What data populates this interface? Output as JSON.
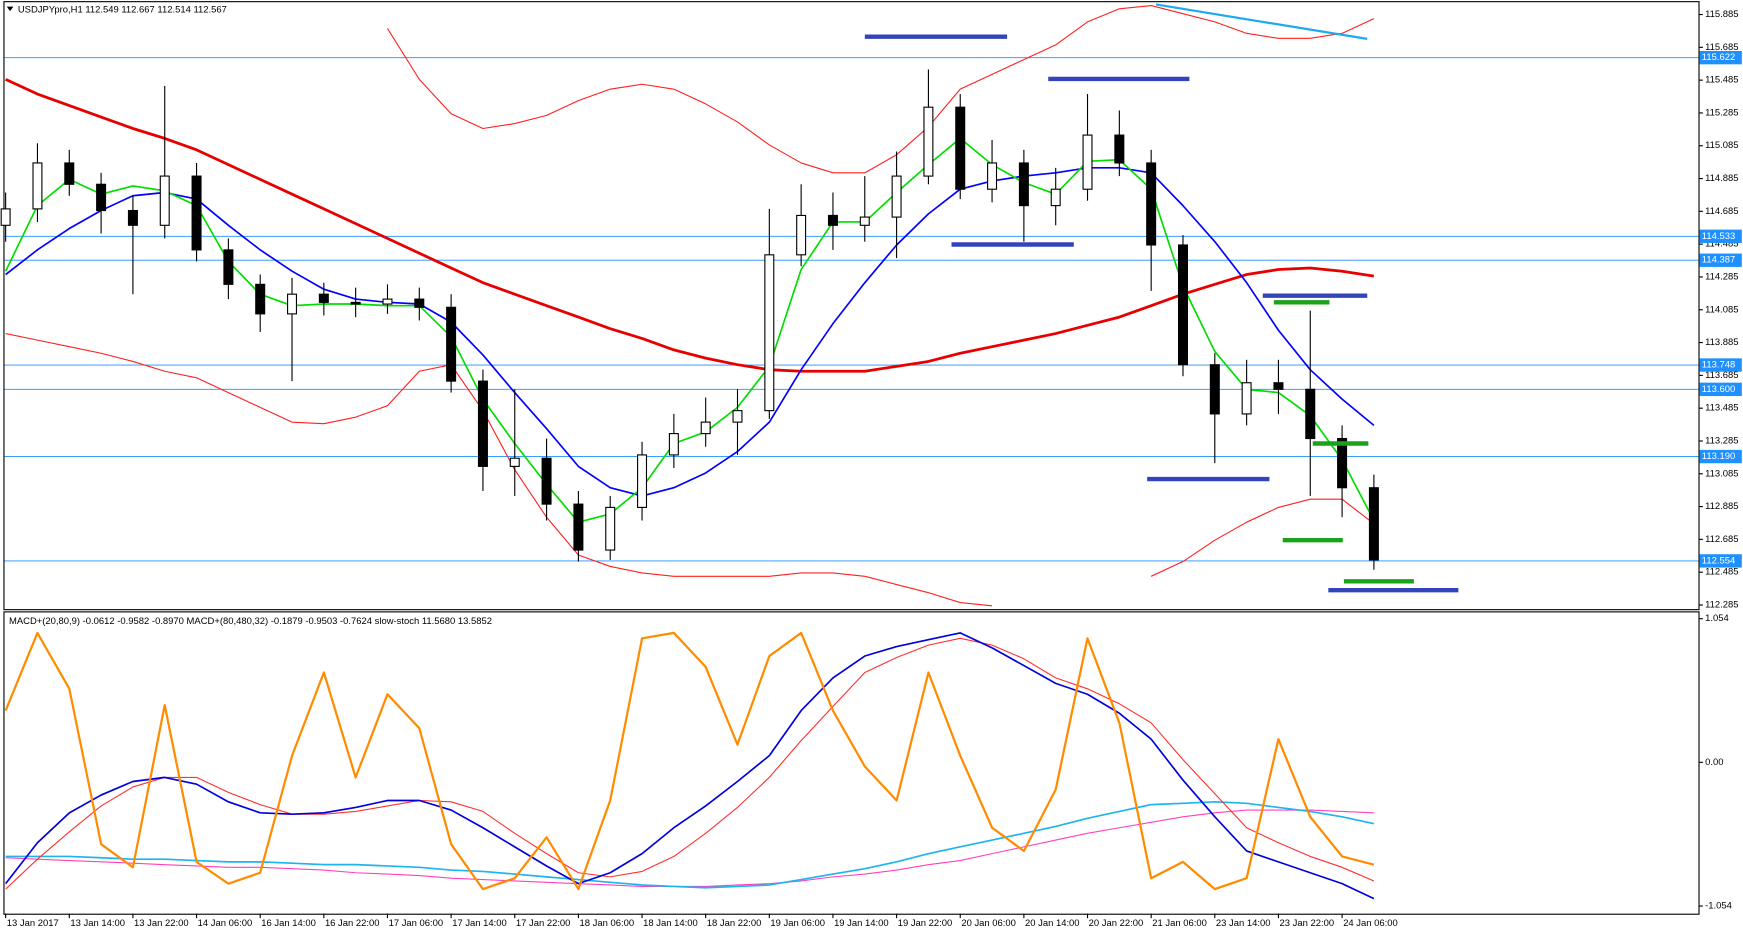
{
  "header": {
    "text": "USDJPYpro,H1  112.549 112.667 112.514 112.567"
  },
  "chart_data": [
    {
      "type": "candlestick",
      "categories": [
        "13 Jan 2017",
        null,
        "13 Jan 14:00",
        null,
        "13 Jan 22:00",
        null,
        "14 Jan 06:00",
        null,
        "16 Jan 14:00",
        null,
        "16 Jan 22:00",
        null,
        "17 Jan 06:00",
        null,
        "17 Jan 14:00",
        null,
        "17 Jan 22:00",
        null,
        "18 Jan 06:00",
        null,
        "18 Jan 14:00",
        null,
        "18 Jan 22:00",
        null,
        "19 Jan 06:00",
        null,
        "19 Jan 14:00",
        null,
        "19 Jan 22:00",
        null,
        "20 Jan 06:00",
        null,
        "20 Jan 14:00",
        null,
        "20 Jan 22:00",
        null,
        "21 Jan 06:00",
        null,
        "23 Jan 14:00",
        null,
        "23 Jan 22:00",
        null,
        "24 Jan 06:00",
        null
      ],
      "open": [
        114.6,
        114.7,
        114.98,
        114.85,
        114.69,
        114.6,
        114.9,
        114.45,
        114.24,
        114.06,
        114.18,
        114.13,
        114.12,
        114.15,
        114.1,
        113.65,
        113.13,
        113.18,
        112.9,
        112.62,
        112.88,
        113.2,
        113.33,
        113.4,
        113.47,
        114.42,
        114.66,
        114.6,
        114.65,
        114.9,
        115.32,
        114.82,
        114.98,
        114.72,
        114.82,
        115.15,
        114.98,
        114.48,
        113.75,
        113.45,
        113.64,
        113.6,
        113.3,
        113.0
      ],
      "high": [
        114.8,
        115.1,
        115.06,
        114.92,
        114.78,
        115.45,
        114.98,
        114.52,
        114.3,
        114.28,
        114.25,
        114.22,
        114.24,
        114.22,
        114.18,
        113.72,
        113.6,
        113.3,
        112.98,
        112.95,
        113.28,
        113.45,
        113.55,
        113.6,
        114.7,
        114.85,
        114.8,
        114.9,
        115.05,
        115.55,
        115.4,
        115.12,
        115.06,
        114.95,
        115.4,
        115.3,
        115.06,
        114.54,
        113.82,
        113.78,
        113.78,
        114.08,
        113.38,
        113.08
      ],
      "low": [
        114.5,
        114.62,
        114.78,
        114.55,
        114.18,
        114.52,
        114.38,
        114.15,
        113.95,
        113.65,
        114.05,
        114.04,
        114.06,
        114.02,
        113.58,
        112.98,
        112.95,
        112.8,
        112.55,
        112.56,
        112.8,
        113.12,
        113.25,
        113.2,
        113.42,
        114.35,
        114.45,
        114.5,
        114.4,
        114.85,
        114.76,
        114.74,
        114.5,
        114.6,
        114.75,
        114.9,
        114.2,
        113.68,
        113.15,
        113.38,
        113.45,
        112.95,
        112.82,
        112.5
      ],
      "close": [
        114.7,
        114.98,
        114.85,
        114.69,
        114.6,
        114.9,
        114.45,
        114.24,
        114.06,
        114.18,
        114.13,
        114.12,
        114.15,
        114.1,
        113.65,
        113.13,
        113.18,
        112.9,
        112.62,
        112.88,
        113.2,
        113.33,
        113.4,
        113.47,
        114.42,
        114.66,
        114.6,
        114.65,
        114.9,
        115.32,
        114.82,
        114.98,
        114.72,
        114.82,
        115.15,
        114.98,
        114.48,
        113.75,
        113.45,
        113.64,
        113.6,
        113.3,
        113.0,
        112.56
      ],
      "up_color": "#ffffff",
      "down_color": "#000000",
      "ylim": [
        112.26,
        115.96
      ],
      "yticks": [
        112.285,
        112.485,
        112.685,
        112.885,
        113.085,
        113.285,
        113.485,
        113.685,
        113.885,
        114.085,
        114.285,
        114.485,
        114.685,
        114.885,
        115.085,
        115.285,
        115.485,
        115.685,
        115.885
      ],
      "levels": [
        115.622,
        114.533,
        114.387,
        113.748,
        {
          "value": 113.6,
          "label": "113.600"
        },
        {
          "value": 113.19,
          "label": "113.190"
        },
        112.554
      ],
      "level_color": "#1e90ff",
      "series": [
        {
          "color": "#ff2020",
          "width": 1,
          "values": [
            null,
            null,
            null,
            null,
            null,
            null,
            null,
            null,
            null,
            null,
            null,
            null,
            115.8,
            115.49,
            115.28,
            115.19,
            115.22,
            115.27,
            115.36,
            115.43,
            115.46,
            115.43,
            115.34,
            115.23,
            115.09,
            114.98,
            114.92,
            114.92,
            115.03,
            115.2,
            115.43,
            115.52,
            115.61,
            115.7,
            115.84,
            115.92,
            115.94,
            115.89,
            115.84,
            115.77,
            115.74,
            115.74,
            115.77,
            115.86
          ]
        },
        {
          "color": "#ff2020",
          "width": 1,
          "values": [
            113.94,
            113.9,
            113.86,
            113.82,
            113.77,
            113.71,
            113.67,
            113.58,
            113.49,
            113.4,
            113.39,
            113.43,
            113.5,
            113.71,
            113.75,
            113.47,
            113.11,
            112.82,
            112.59,
            112.52,
            112.48,
            112.46,
            112.46,
            112.46,
            112.46,
            112.48,
            112.48,
            112.46,
            112.41,
            112.36,
            112.3,
            112.28,
            null,
            null,
            null,
            null,
            112.46,
            112.55,
            112.68,
            112.79,
            112.88,
            112.93,
            112.93,
            112.78
          ]
        },
        {
          "color": "#e80000",
          "width": 2.5,
          "values": [
            115.49,
            115.4,
            115.33,
            115.26,
            115.19,
            115.13,
            115.06,
            114.97,
            114.88,
            114.79,
            114.7,
            114.61,
            114.52,
            114.43,
            114.34,
            114.25,
            114.18,
            114.11,
            114.04,
            113.97,
            113.91,
            113.84,
            113.79,
            113.75,
            113.72,
            113.71,
            113.71,
            113.71,
            113.74,
            113.77,
            113.82,
            113.86,
            113.9,
            113.94,
            113.99,
            114.04,
            114.11,
            114.18,
            114.24,
            114.3,
            114.33,
            114.34,
            114.32,
            114.29
          ]
        },
        {
          "color": "#0000ff",
          "width": 1.5,
          "values": [
            114.3,
            114.45,
            114.58,
            114.69,
            114.78,
            114.8,
            114.76,
            114.6,
            114.45,
            114.32,
            114.21,
            114.15,
            114.13,
            114.12,
            114.01,
            113.81,
            113.58,
            113.36,
            113.13,
            113.0,
            112.95,
            113.0,
            113.09,
            113.22,
            113.4,
            113.72,
            114.0,
            114.25,
            114.48,
            114.67,
            114.82,
            114.87,
            114.9,
            114.92,
            114.95,
            114.95,
            114.92,
            114.72,
            114.5,
            114.25,
            113.96,
            113.72,
            113.54,
            113.38
          ]
        },
        {
          "color": "#00dd00",
          "width": 1.5,
          "values": [
            114.32,
            114.72,
            114.88,
            114.79,
            114.84,
            114.81,
            114.72,
            114.38,
            114.18,
            114.11,
            114.12,
            114.12,
            114.11,
            114.11,
            113.92,
            113.54,
            113.27,
            113.02,
            112.79,
            112.84,
            113.0,
            113.27,
            113.34,
            113.49,
            113.74,
            114.33,
            114.62,
            114.62,
            114.8,
            114.97,
            115.13,
            114.97,
            114.86,
            114.79,
            114.99,
            115.0,
            114.82,
            114.23,
            113.83,
            113.6,
            113.58,
            113.44,
            113.17,
            112.8
          ]
        }
      ]
    },
    {
      "type": "line",
      "title": "MACD+(20,80,9) -0.0612 -0.9582 -0.8970  MACD+(80,480,32) -0.1879 -0.9503 -0.7624  slow-stoch 11.5680 13.5852",
      "ylim": [
        -1.11,
        1.1
      ],
      "yticks": [
        1.054,
        {
          "value": 0,
          "label": "0.00"
        },
        -1.054
      ],
      "series": [
        {
          "color": "#ff40c0",
          "width": 1,
          "values": [
            -0.7,
            -0.71,
            -0.72,
            -0.73,
            -0.74,
            -0.75,
            -0.76,
            -0.77,
            -0.77,
            -0.78,
            -0.79,
            -0.81,
            -0.82,
            -0.83,
            -0.85,
            -0.86,
            -0.87,
            -0.88,
            -0.89,
            -0.9,
            -0.91,
            -0.91,
            -0.91,
            -0.9,
            -0.89,
            -0.87,
            -0.84,
            -0.82,
            -0.79,
            -0.75,
            -0.72,
            -0.67,
            -0.62,
            -0.57,
            -0.52,
            -0.48,
            -0.44,
            -0.4,
            -0.37,
            -0.35,
            -0.35,
            -0.35,
            -0.36,
            -0.37
          ]
        },
        {
          "color": "#1eb4f0",
          "width": 1.5,
          "values": [
            -0.69,
            -0.69,
            -0.69,
            -0.7,
            -0.71,
            -0.71,
            -0.72,
            -0.73,
            -0.73,
            -0.74,
            -0.75,
            -0.75,
            -0.76,
            -0.77,
            -0.79,
            -0.8,
            -0.82,
            -0.84,
            -0.86,
            -0.88,
            -0.9,
            -0.91,
            -0.92,
            -0.91,
            -0.9,
            -0.86,
            -0.82,
            -0.78,
            -0.73,
            -0.67,
            -0.62,
            -0.57,
            -0.52,
            -0.47,
            -0.41,
            -0.36,
            -0.31,
            -0.3,
            -0.29,
            -0.3,
            -0.33,
            -0.36,
            -0.4,
            -0.45
          ]
        },
        {
          "color": "#ff3030",
          "width": 1,
          "values": [
            -0.93,
            -0.71,
            -0.51,
            -0.32,
            -0.18,
            -0.11,
            -0.11,
            -0.22,
            -0.31,
            -0.38,
            -0.38,
            -0.36,
            -0.32,
            -0.28,
            -0.29,
            -0.36,
            -0.52,
            -0.67,
            -0.81,
            -0.84,
            -0.8,
            -0.69,
            -0.52,
            -0.33,
            -0.11,
            0.16,
            0.41,
            0.66,
            0.77,
            0.86,
            0.91,
            0.86,
            0.76,
            0.62,
            0.54,
            0.43,
            0.29,
            0.02,
            -0.23,
            -0.48,
            -0.59,
            -0.69,
            -0.77,
            -0.87
          ]
        },
        {
          "color": "#0000dd",
          "width": 1.5,
          "values": [
            -0.89,
            -0.59,
            -0.37,
            -0.24,
            -0.14,
            -0.11,
            -0.16,
            -0.29,
            -0.37,
            -0.38,
            -0.37,
            -0.33,
            -0.28,
            -0.28,
            -0.35,
            -0.48,
            -0.62,
            -0.76,
            -0.89,
            -0.81,
            -0.67,
            -0.48,
            -0.32,
            -0.14,
            0.05,
            0.38,
            0.62,
            0.78,
            0.85,
            0.9,
            0.95,
            0.84,
            0.71,
            0.58,
            0.5,
            0.36,
            0.17,
            -0.13,
            -0.4,
            -0.65,
            -0.73,
            -0.81,
            -0.89,
            -1.0
          ]
        },
        {
          "color": "#ff8c00",
          "width": 2,
          "values": [
            0.38,
            0.95,
            0.54,
            -0.6,
            -0.77,
            0.42,
            -0.73,
            -0.89,
            -0.81,
            0.05,
            0.66,
            -0.11,
            0.5,
            0.25,
            -0.6,
            -0.93,
            -0.85,
            -0.55,
            -0.93,
            -0.28,
            0.91,
            0.95,
            0.7,
            0.13,
            0.78,
            0.95,
            0.38,
            -0.03,
            -0.28,
            0.66,
            0.05,
            -0.48,
            -0.65,
            -0.2,
            0.91,
            0.29,
            -0.85,
            -0.73,
            -0.93,
            -0.85,
            0.17,
            -0.4,
            -0.69,
            -0.75
          ]
        }
      ]
    }
  ]
}
